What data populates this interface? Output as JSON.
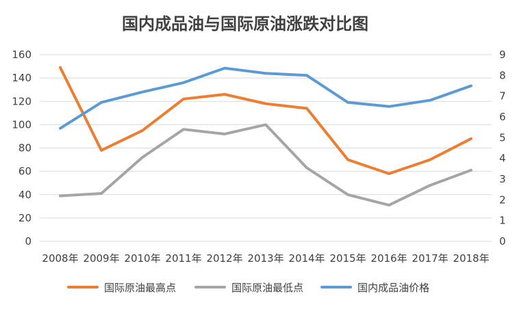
{
  "chart_data": {
    "type": "line",
    "title": "国内成品油与国际原油涨跌对比图",
    "categories": [
      "2008年",
      "2009年",
      "2010年",
      "2011年",
      "2012年",
      "2013年",
      "2014年",
      "2015年",
      "2016年",
      "2017年",
      "2018年"
    ],
    "left_axis": {
      "ylim": [
        0,
        160
      ],
      "ticks": [
        "0",
        "20",
        "40",
        "60",
        "80",
        "100",
        "120",
        "140",
        "160"
      ]
    },
    "right_axis": {
      "ylim": [
        0,
        9
      ],
      "ticks": [
        "0",
        "1",
        "2",
        "3",
        "4",
        "5",
        "6",
        "7",
        "8",
        "9"
      ]
    },
    "grid": true,
    "legend_position": "bottom",
    "series": [
      {
        "name": "国际原油最高点",
        "axis": "left",
        "color": "#ed7d31",
        "values": [
          149,
          78,
          95,
          122,
          126,
          118,
          114,
          70,
          58,
          70,
          88
        ]
      },
      {
        "name": "国际原油最低点",
        "axis": "left",
        "color": "#a5a5a5",
        "values": [
          39,
          41,
          72,
          96,
          92,
          100,
          63,
          40,
          31,
          48,
          61
        ]
      },
      {
        "name": "国内成品油价格",
        "axis": "right",
        "color": "#5b9bd5",
        "values": [
          5.45,
          6.7,
          7.2,
          7.65,
          8.35,
          8.1,
          8.0,
          6.7,
          6.5,
          6.8,
          7.5
        ]
      }
    ]
  }
}
